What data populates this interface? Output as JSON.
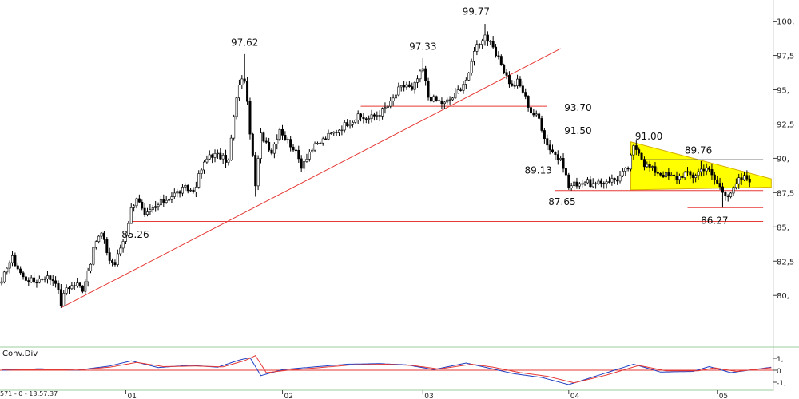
{
  "chart_data": [
    {
      "type": "candlestick",
      "panel": "price",
      "ylim": [
        78.5,
        100.5
      ],
      "yticks": [
        "100,",
        "97,5",
        "95,",
        "92,5",
        "90,",
        "87,5",
        "85,",
        "82,5",
        "80,"
      ],
      "ytick_values": [
        100,
        97.5,
        95,
        92.5,
        90,
        87.5,
        85,
        82.5,
        80
      ],
      "x_ticks": [
        "01",
        "02",
        "03",
        "04",
        "05"
      ],
      "x_tick_index": [
        46,
        104,
        156,
        210,
        265
      ],
      "anchors": [
        [
          0,
          80.8
        ],
        [
          2,
          82.2
        ],
        [
          4,
          82.7
        ],
        [
          8,
          81.3
        ],
        [
          12,
          81.0
        ],
        [
          16,
          81.4
        ],
        [
          20,
          81.1
        ],
        [
          22,
          79.4
        ],
        [
          24,
          80.6
        ],
        [
          28,
          80.8
        ],
        [
          30,
          80.5
        ],
        [
          33,
          82.5
        ],
        [
          35,
          84.0
        ],
        [
          37,
          84.5
        ],
        [
          40,
          82.6
        ],
        [
          42,
          82.3
        ],
        [
          44,
          83.5
        ],
        [
          46,
          84.5
        ],
        [
          48,
          86.3
        ],
        [
          50,
          87.2
        ],
        [
          53,
          85.7
        ],
        [
          56,
          86.3
        ],
        [
          60,
          86.9
        ],
        [
          64,
          87.4
        ],
        [
          68,
          87.8
        ],
        [
          71,
          87.6
        ],
        [
          74,
          89.2
        ],
        [
          77,
          90.3
        ],
        [
          80,
          90.2
        ],
        [
          84,
          89.8
        ],
        [
          86,
          93.0
        ],
        [
          88,
          95.5
        ],
        [
          90,
          95.8
        ],
        [
          92,
          92.0
        ],
        [
          94,
          88.0
        ],
        [
          96,
          91.7
        ],
        [
          98,
          91.2
        ],
        [
          100,
          90.5
        ],
        [
          103,
          92.2
        ],
        [
          105,
          91.5
        ],
        [
          108,
          90.8
        ],
        [
          111,
          89.5
        ],
        [
          114,
          90.5
        ],
        [
          117,
          91.0
        ],
        [
          120,
          91.5
        ],
        [
          124,
          92.0
        ],
        [
          128,
          92.6
        ],
        [
          132,
          93.0
        ],
        [
          136,
          92.9
        ],
        [
          140,
          93.3
        ],
        [
          144,
          94.0
        ],
        [
          147,
          95.0
        ],
        [
          150,
          95.4
        ],
        [
          152,
          94.9
        ],
        [
          154,
          95.8
        ],
        [
          156,
          96.5
        ],
        [
          158,
          94.5
        ],
        [
          160,
          94.3
        ],
        [
          164,
          94.0
        ],
        [
          168,
          94.6
        ],
        [
          171,
          95.5
        ],
        [
          173,
          96.0
        ],
        [
          175,
          98.0
        ],
        [
          177,
          98.5
        ],
        [
          179,
          99.0
        ],
        [
          181,
          98.3
        ],
        [
          183,
          97.5
        ],
        [
          185,
          96.9
        ],
        [
          187,
          96.0
        ],
        [
          189,
          95.2
        ],
        [
          191,
          95.6
        ],
        [
          193,
          94.9
        ],
        [
          196,
          93.4
        ],
        [
          199,
          92.9
        ],
        [
          202,
          91.0
        ],
        [
          205,
          90.3
        ],
        [
          208,
          89.5
        ],
        [
          210,
          87.9
        ],
        [
          213,
          88.2
        ],
        [
          216,
          88.3
        ],
        [
          220,
          88.0
        ],
        [
          224,
          88.4
        ],
        [
          228,
          88.5
        ],
        [
          232,
          89.3
        ],
        [
          234,
          90.8
        ],
        [
          236,
          90.6
        ],
        [
          238,
          89.6
        ],
        [
          241,
          89.2
        ],
        [
          244,
          88.9
        ],
        [
          247,
          88.7
        ],
        [
          250,
          88.6
        ],
        [
          253,
          88.9
        ],
        [
          256,
          88.7
        ],
        [
          259,
          89.2
        ],
        [
          261,
          89.4
        ],
        [
          263,
          88.7
        ],
        [
          265,
          88.2
        ],
        [
          267,
          87.6
        ],
        [
          269,
          87.4
        ],
        [
          271,
          87.7
        ],
        [
          273,
          88.4
        ],
        [
          275,
          88.6
        ],
        [
          277,
          88.5
        ]
      ],
      "points": [
        {
          "i": 22,
          "low": 79.1
        },
        {
          "i": 48,
          "low": 85.3
        },
        {
          "i": 90,
          "high": 97.6
        },
        {
          "i": 94,
          "low": 87.2
        },
        {
          "i": 156,
          "high": 97.3
        },
        {
          "i": 179,
          "high": 99.8
        },
        {
          "i": 210,
          "low": 87.7
        },
        {
          "i": 234,
          "high": 91.0
        },
        {
          "i": 259,
          "high": 89.8
        },
        {
          "i": 267,
          "low": 86.4
        }
      ],
      "annotations": [
        {
          "text": "97.62",
          "i": 90,
          "y": 97.62,
          "pos": "above"
        },
        {
          "text": "97.33",
          "i": 156,
          "y": 97.33,
          "pos": "above"
        },
        {
          "text": "99.77",
          "i": 179,
          "y": 99.77,
          "pos": "above-left"
        },
        {
          "text": "93.70",
          "i": 206,
          "y": 93.7,
          "pos": "right"
        },
        {
          "text": "91.50",
          "i": 206,
          "y": 92.0,
          "pos": "right"
        },
        {
          "text": "89.13",
          "i": 205,
          "y": 89.13,
          "pos": "left"
        },
        {
          "text": "87.65",
          "i": 206,
          "y": 87.65,
          "pos": "below-right"
        },
        {
          "text": "91.00",
          "i": 234,
          "y": 91.0,
          "pos": "above-right"
        },
        {
          "text": "89.76",
          "i": 258,
          "y": 89.76,
          "pos": "above"
        },
        {
          "text": "86.27",
          "i": 264,
          "y": 86.27,
          "pos": "below"
        },
        {
          "text": "85.26",
          "i": 48,
          "y": 85.26,
          "pos": "below-right"
        }
      ],
      "lines": [
        {
          "kind": "trend",
          "color": "#e53935",
          "from": [
            22,
            79.1
          ],
          "to": [
            207,
            98.0
          ]
        },
        {
          "kind": "h",
          "color": "#e53935",
          "y": 85.4,
          "from_i": 48,
          "to_i": 282
        },
        {
          "kind": "h",
          "color": "#e53935",
          "y": 93.8,
          "from_i": 133,
          "to_i": 202
        },
        {
          "kind": "h",
          "color": "#e53935",
          "y": 87.65,
          "from_i": 205,
          "to_i": 282
        },
        {
          "kind": "h",
          "color": "#e53935",
          "y": 86.4,
          "from_i": 254,
          "to_i": 282
        },
        {
          "kind": "h",
          "color": "#555555",
          "y": 89.9,
          "from_i": 238,
          "to_i": 282
        }
      ],
      "triangle": {
        "color": "#ffff00",
        "edge": "#d4b000",
        "points": [
          [
            233,
            91.2
          ],
          [
            233,
            87.7
          ],
          [
            285,
            87.9
          ],
          [
            285,
            88.5
          ]
        ]
      }
    },
    {
      "type": "line",
      "panel": "oscillator",
      "title": "Conv.Div",
      "ylim": [
        -1.2,
        1.6
      ],
      "yticks": [
        "1,",
        "0",
        "-1,"
      ],
      "ytick_values": [
        1,
        0,
        -1
      ],
      "hline": {
        "y": 0,
        "color": "#e53935"
      },
      "series": [
        {
          "color": "#1f3fc2",
          "anchors": [
            [
              0,
              0.0
            ],
            [
              14,
              0.12
            ],
            [
              28,
              0.0
            ],
            [
              40,
              0.35
            ],
            [
              48,
              0.78
            ],
            [
              58,
              0.22
            ],
            [
              70,
              0.42
            ],
            [
              80,
              0.25
            ],
            [
              88,
              0.85
            ],
            [
              92,
              1.05
            ],
            [
              96,
              -0.45
            ],
            [
              104,
              0.05
            ],
            [
              116,
              0.28
            ],
            [
              128,
              0.5
            ],
            [
              140,
              0.55
            ],
            [
              150,
              0.45
            ],
            [
              160,
              0.05
            ],
            [
              172,
              0.6
            ],
            [
              180,
              0.2
            ],
            [
              190,
              -0.3
            ],
            [
              200,
              -0.6
            ],
            [
              210,
              -1.2
            ],
            [
              222,
              -0.35
            ],
            [
              234,
              0.5
            ],
            [
              244,
              -0.15
            ],
            [
              256,
              -0.1
            ],
            [
              262,
              0.3
            ],
            [
              270,
              -0.2
            ],
            [
              285,
              0.25
            ]
          ]
        },
        {
          "color": "#e53935",
          "anchors": [
            [
              0,
              0.05
            ],
            [
              14,
              0.05
            ],
            [
              28,
              0.02
            ],
            [
              40,
              0.25
            ],
            [
              50,
              0.65
            ],
            [
              60,
              0.3
            ],
            [
              72,
              0.35
            ],
            [
              82,
              0.28
            ],
            [
              90,
              0.8
            ],
            [
              94,
              1.22
            ],
            [
              98,
              -0.2
            ],
            [
              106,
              0.0
            ],
            [
              118,
              0.22
            ],
            [
              130,
              0.45
            ],
            [
              142,
              0.5
            ],
            [
              152,
              0.4
            ],
            [
              162,
              0.1
            ],
            [
              174,
              0.5
            ],
            [
              182,
              0.25
            ],
            [
              192,
              -0.2
            ],
            [
              202,
              -0.5
            ],
            [
              212,
              -1.05
            ],
            [
              224,
              -0.4
            ],
            [
              236,
              0.4
            ],
            [
              246,
              -0.05
            ],
            [
              258,
              -0.05
            ],
            [
              264,
              0.2
            ],
            [
              272,
              -0.1
            ],
            [
              285,
              0.2
            ]
          ]
        }
      ]
    }
  ],
  "status_text": "571 - 0 - 13:57:37"
}
